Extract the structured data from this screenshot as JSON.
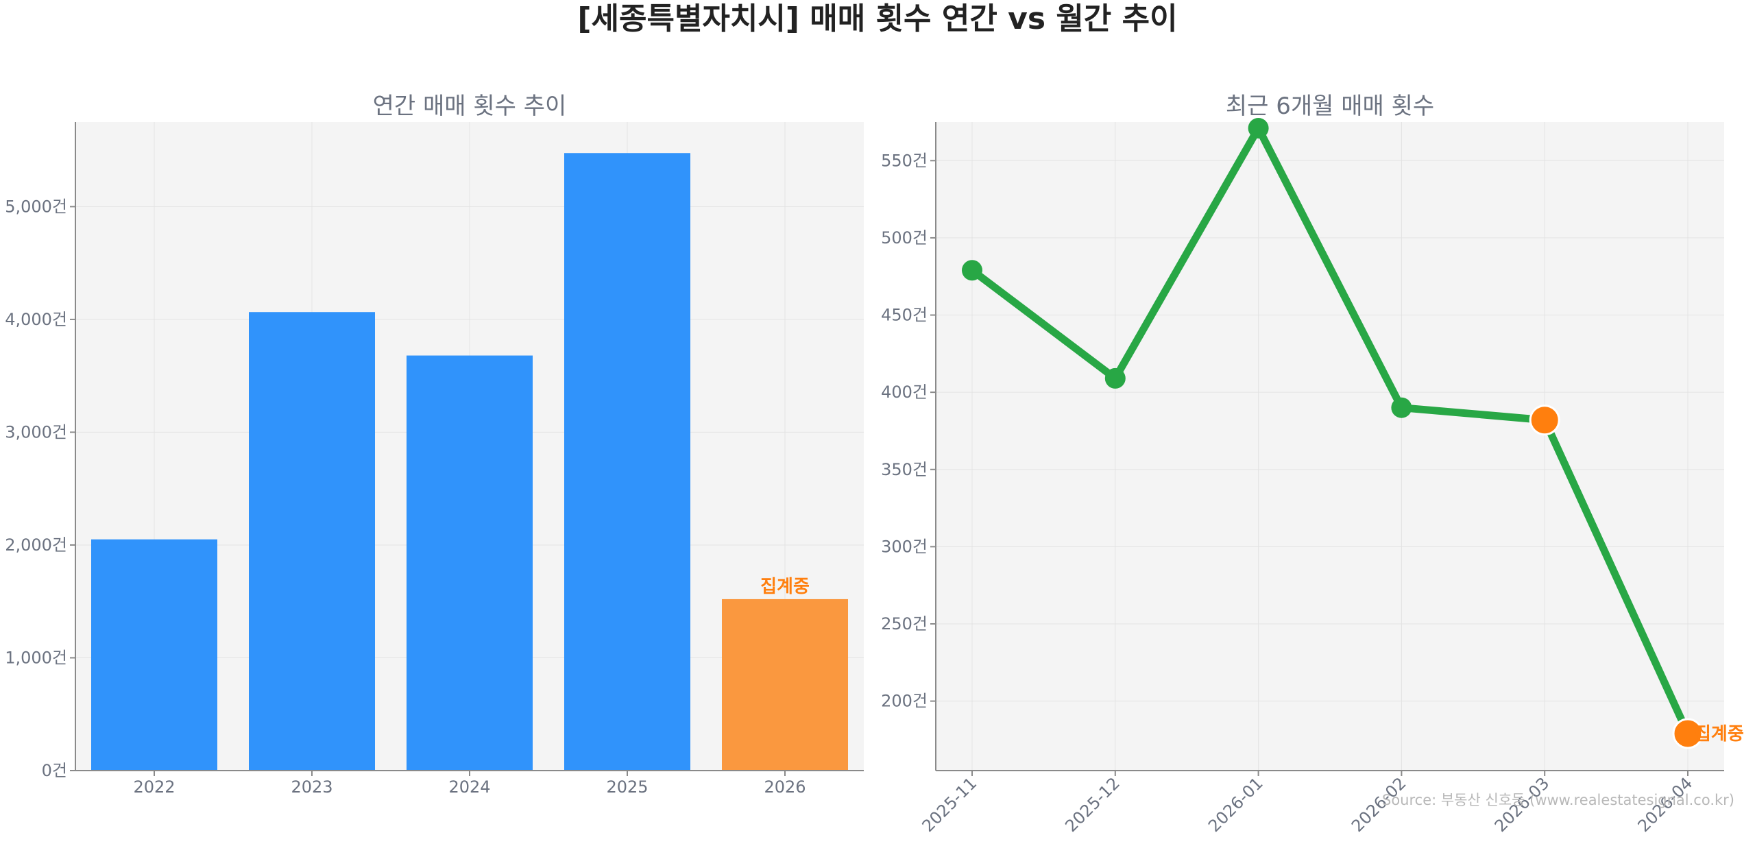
{
  "title": "[세종특별자치시] 매매 횟수 연간 vs 월간 추이",
  "source": "Source: 부동산 신호등 (www.realestatesignal.co.kr)",
  "colors": {
    "bar": "#3093fb",
    "bar_partial": "#fa983f",
    "line": "#28a745",
    "partial_marker": "#ff7f0e",
    "plot_bg": "#f4f4f4",
    "grid": "#e3e3e3",
    "axis": "#8a8a8a"
  },
  "chart_data": [
    {
      "type": "bar",
      "title": "연간 매매 횟수 추이",
      "categories": [
        "2022",
        "2023",
        "2024",
        "2025",
        "2026"
      ],
      "values": [
        2050,
        4065,
        3680,
        5475,
        1520
      ],
      "partial": [
        false,
        false,
        false,
        false,
        true
      ],
      "annotation": "집계중",
      "ylim": [
        0,
        5750
      ],
      "yticks": [
        0,
        1000,
        2000,
        3000,
        4000,
        5000
      ],
      "ytick_labels": [
        "0건",
        "1,000건",
        "2,000건",
        "3,000건",
        "4,000건",
        "5,000건"
      ],
      "grid": true
    },
    {
      "type": "line",
      "title": "최근 6개월 매매 횟수",
      "categories": [
        "2025-11",
        "2025-12",
        "2026-01",
        "2026-02",
        "2026-03",
        "2026-04"
      ],
      "values": [
        479,
        409,
        571,
        390,
        382,
        179
      ],
      "partial": [
        false,
        false,
        false,
        false,
        true,
        true
      ],
      "annotation": "집계중",
      "ylim": [
        155,
        575
      ],
      "yticks": [
        200,
        250,
        300,
        350,
        400,
        450,
        500,
        550
      ],
      "ytick_labels": [
        "200건",
        "250건",
        "300건",
        "350건",
        "400건",
        "450건",
        "500건",
        "550건"
      ],
      "grid": true
    }
  ]
}
